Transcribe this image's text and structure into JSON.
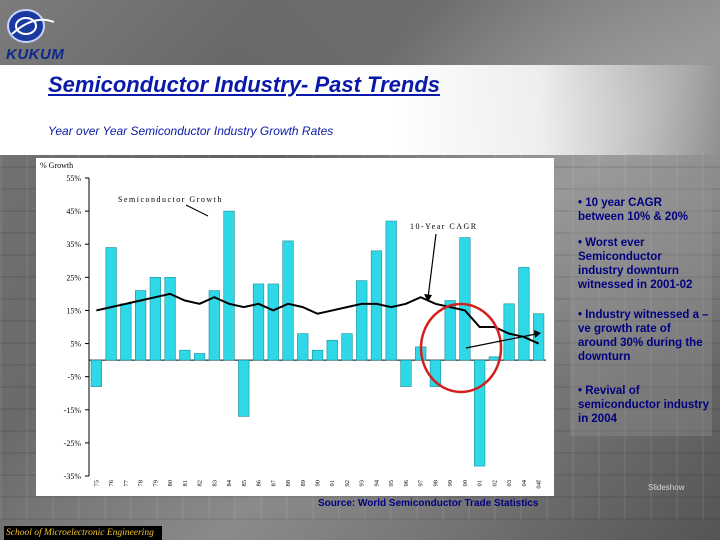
{
  "header": {
    "logo_text": "KUKUM",
    "title": "Semiconductor Industry- Past Trends",
    "subtitle": "Year over Year Semiconductor Industry Growth Rates"
  },
  "chart_data": {
    "type": "bar",
    "ylabel": "% Growth",
    "ylim": [
      -35,
      55
    ],
    "yticks": [
      "55%",
      "45%",
      "35%",
      "25%",
      "15%",
      "5%",
      "-5%",
      "-15%",
      "-25%",
      "-35%"
    ],
    "categories": [
      "75",
      "76",
      "77",
      "78",
      "79",
      "80",
      "81",
      "82",
      "83",
      "84",
      "85",
      "86",
      "87",
      "88",
      "89",
      "90",
      "91",
      "92",
      "93",
      "94",
      "95",
      "96",
      "97",
      "98",
      "99",
      "00",
      "01",
      "02",
      "03",
      "04",
      "04f"
    ],
    "series": [
      {
        "name": "Semiconductor Growth",
        "type": "bar",
        "values": [
          -8,
          34,
          17,
          21,
          25,
          25,
          3,
          2,
          21,
          45,
          -17,
          23,
          23,
          36,
          8,
          3,
          6,
          8,
          24,
          33,
          42,
          -8,
          4,
          -8,
          18,
          37,
          -32,
          1,
          17,
          28,
          14
        ]
      },
      {
        "name": "10-Year CAGR",
        "type": "line",
        "values": [
          15,
          16,
          17,
          18,
          19,
          20,
          18,
          17,
          19,
          17,
          16,
          17,
          15,
          17,
          16,
          14,
          15,
          16,
          17,
          17,
          16,
          17,
          19,
          17,
          16,
          15,
          10,
          10,
          8,
          7,
          5
        ]
      }
    ],
    "grid": false,
    "legend": "inline labels"
  },
  "bullets": [
    "• 10 year CAGR between 10% & 20%",
    "• Worst ever Semiconductor industry downturn witnessed in 2001-02",
    "• Industry witnessed a –ve growth rate of around 30% during the downturn",
    "• Revival of semiconductor industry in 2004"
  ],
  "source": "Source: World Semiconductor Trade Statistics",
  "watermark": "Slideshow",
  "footer": "School of Microelectronic Engineering",
  "colors": {
    "bar": "#2fd8e6",
    "title": "#0a1aa8",
    "annotation_circle": "#d41f1f",
    "footer_text": "#f4c430"
  }
}
